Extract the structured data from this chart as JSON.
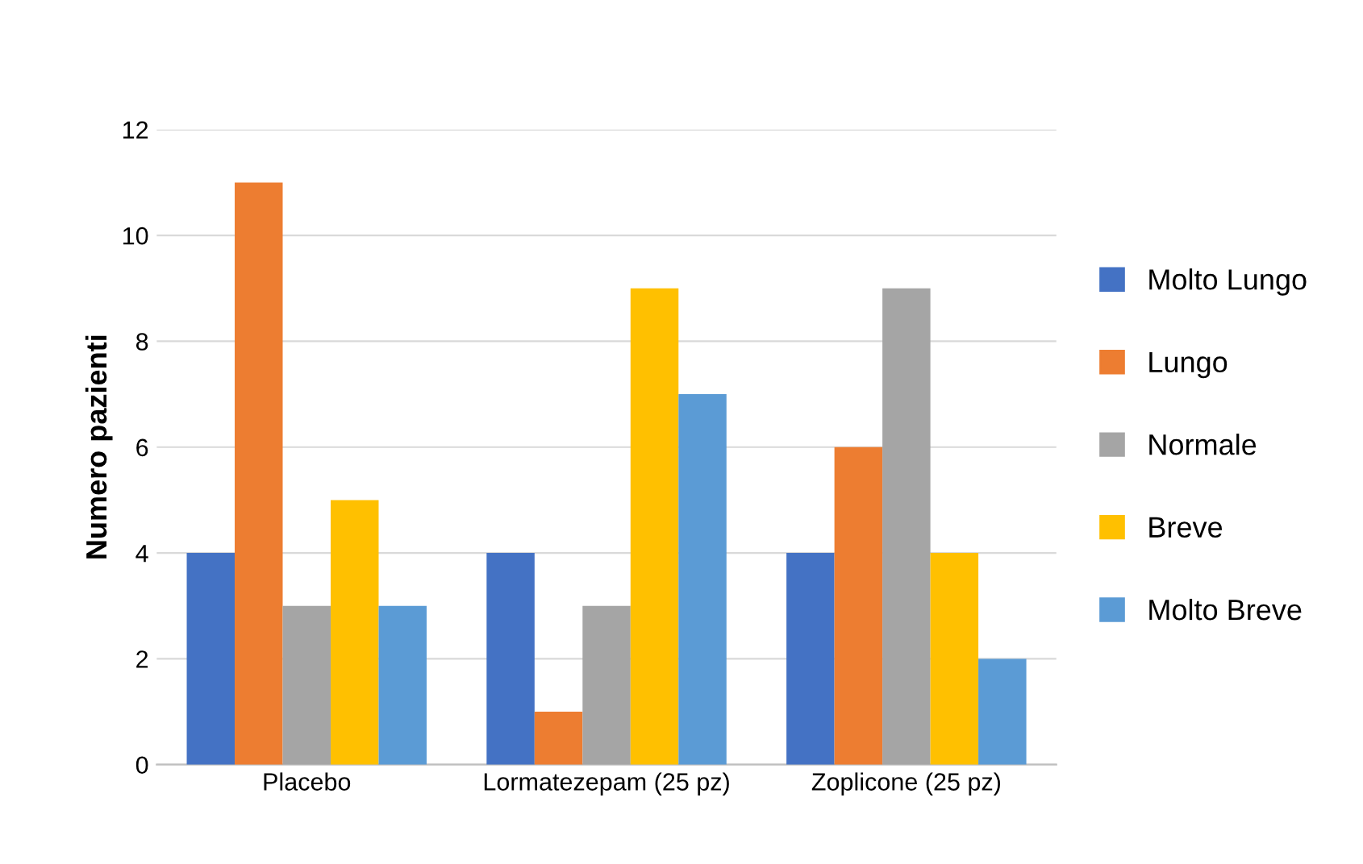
{
  "chart_data": {
    "type": "bar",
    "ylabel": "Numero pazienti",
    "categories": [
      "Placebo",
      "Lormatezepam (25 pz)",
      "Zoplicone (25 pz)"
    ],
    "series": [
      {
        "name": "Molto Lungo",
        "color": "#4472c4",
        "values": [
          4,
          4,
          4
        ]
      },
      {
        "name": "Lungo",
        "color": "#ed7d31",
        "values": [
          11,
          1,
          6
        ]
      },
      {
        "name": "Normale",
        "color": "#a5a5a5",
        "values": [
          3,
          3,
          9
        ]
      },
      {
        "name": "Breve",
        "color": "#ffc000",
        "values": [
          5,
          9,
          4
        ]
      },
      {
        "name": "Molto Breve",
        "color": "#5b9bd5",
        "values": [
          3,
          7,
          2
        ]
      }
    ],
    "ylim": [
      0,
      12
    ],
    "yticks": [
      0,
      2,
      4,
      6,
      8,
      10,
      12
    ],
    "grid": "y",
    "legend": "right"
  }
}
